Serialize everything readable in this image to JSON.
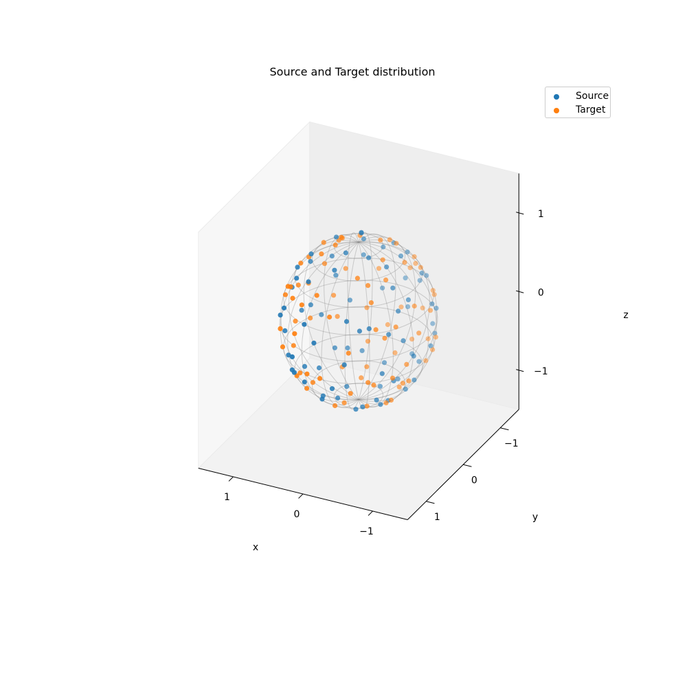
{
  "chart_data": {
    "type": "scatter",
    "projection": "3d",
    "title": "Source and Target distribution",
    "xlabel": "x",
    "ylabel": "y",
    "zlabel": "z",
    "xlim": [
      -1.5,
      1.5
    ],
    "ylim": [
      -1.5,
      1.5
    ],
    "zlim": [
      -1.5,
      1.5
    ],
    "xticks": [
      1,
      0,
      -1
    ],
    "yticks": [
      -1,
      0,
      1
    ],
    "zticks": [
      1,
      0,
      -1
    ],
    "xtick_labels": [
      "1",
      "0",
      "−1"
    ],
    "ytick_labels": [
      "−1",
      "0",
      "1"
    ],
    "ztick_labels": [
      "1",
      "0",
      "−1"
    ],
    "grid": false,
    "legend_position": "top-right",
    "surface": "unit sphere wireframe",
    "series": [
      {
        "name": "Source",
        "color": "#1f77b4",
        "points": [
          [
            0.12,
            0.98,
            0.15
          ],
          [
            -0.45,
            0.82,
            0.35
          ],
          [
            0.66,
            0.55,
            -0.51
          ],
          [
            -0.78,
            0.4,
            0.48
          ],
          [
            0.3,
            -0.7,
            0.65
          ],
          [
            -0.2,
            -0.95,
            -0.22
          ],
          [
            0.85,
            -0.3,
            0.43
          ],
          [
            -0.6,
            -0.5,
            -0.62
          ],
          [
            0.05,
            0.25,
            0.97
          ],
          [
            -0.15,
            -0.3,
            -0.94
          ],
          [
            0.95,
            0.2,
            -0.24
          ],
          [
            -0.92,
            -0.25,
            0.3
          ],
          [
            0.4,
            0.6,
            0.69
          ],
          [
            -0.35,
            0.55,
            -0.76
          ],
          [
            0.55,
            -0.8,
            -0.23
          ],
          [
            -0.7,
            0.68,
            -0.2
          ],
          [
            0.2,
            -0.45,
            0.87
          ],
          [
            -0.5,
            -0.2,
            0.84
          ],
          [
            0.75,
            0.6,
            0.28
          ],
          [
            -0.1,
            0.9,
            -0.42
          ],
          [
            0.62,
            -0.1,
            -0.78
          ],
          [
            -0.85,
            0.1,
            -0.52
          ],
          [
            0.1,
            -0.85,
            0.52
          ],
          [
            -0.3,
            -0.75,
            0.59
          ],
          [
            0.9,
            -0.4,
            -0.18
          ],
          [
            -0.65,
            0.3,
            0.7
          ],
          [
            0.35,
            0.3,
            -0.89
          ],
          [
            -0.25,
            0.2,
            0.95
          ],
          [
            0.5,
            0.85,
            -0.17
          ],
          [
            -0.8,
            -0.55,
            -0.24
          ],
          [
            0.7,
            -0.6,
            0.39
          ],
          [
            -0.4,
            -0.9,
            0.18
          ],
          [
            0.15,
            0.7,
            -0.7
          ],
          [
            -0.55,
            0.75,
            0.37
          ],
          [
            0.82,
            0.35,
            -0.45
          ],
          [
            -0.95,
            0.3,
            -0.1
          ],
          [
            0.25,
            -0.15,
            -0.96
          ],
          [
            -0.45,
            0.05,
            -0.89
          ],
          [
            0.6,
            0.15,
            0.79
          ],
          [
            -0.72,
            -0.35,
            0.6
          ],
          [
            0.45,
            -0.55,
            -0.7
          ],
          [
            -0.05,
            -0.6,
            -0.8
          ],
          [
            0.98,
            -0.05,
            0.19
          ],
          [
            -0.2,
            0.45,
            -0.87
          ],
          [
            0.3,
            0.9,
            0.31
          ],
          [
            -0.6,
            -0.7,
            0.38
          ],
          [
            0.72,
            0.1,
            -0.69
          ],
          [
            -0.88,
            0.45,
            0.15
          ],
          [
            0.18,
            -0.98,
            -0.08
          ],
          [
            -0.35,
            -0.4,
            -0.85
          ],
          [
            0.55,
            0.7,
            -0.45
          ],
          [
            -0.75,
            0.6,
            0.27
          ],
          [
            0.08,
            0.5,
            0.86
          ],
          [
            -0.98,
            -0.1,
            -0.15
          ],
          [
            0.8,
            -0.5,
            -0.33
          ],
          [
            -0.5,
            0.35,
            -0.79
          ],
          [
            0.38,
            -0.85,
            0.36
          ],
          [
            -0.15,
            -0.98,
            0.12
          ],
          [
            0.65,
            0.45,
            0.61
          ],
          [
            -0.62,
            -0.1,
            -0.78
          ],
          [
            0.92,
            0.38,
            0.05
          ],
          [
            -0.28,
            0.85,
            0.45
          ],
          [
            0.48,
            -0.3,
            0.82
          ],
          [
            -0.82,
            0.2,
            0.54
          ],
          [
            0.22,
            0.15,
            -0.96
          ],
          [
            -0.42,
            -0.65,
            -0.63
          ],
          [
            0.7,
            -0.7,
            0.1
          ],
          [
            -0.9,
            -0.4,
            0.17
          ],
          [
            0.12,
            -0.3,
            0.95
          ],
          [
            -0.55,
            0.55,
            -0.63
          ],
          [
            0.85,
            0.05,
            0.52
          ],
          [
            -0.3,
            0.95,
            -0.05
          ],
          [
            0.58,
            -0.45,
            -0.68
          ],
          [
            -0.7,
            -0.68,
            -0.2
          ],
          [
            0.35,
            0.8,
            -0.48
          ],
          [
            -0.12,
            -0.72,
            0.68
          ],
          [
            0.95,
            -0.25,
            -0.19
          ],
          [
            -0.48,
            0.15,
            0.86
          ],
          [
            0.28,
            -0.62,
            -0.73
          ],
          [
            -0.78,
            0.52,
            -0.35
          ]
        ]
      },
      {
        "name": "Target",
        "color": "#ff7f0e",
        "points": [
          [
            0.05,
            0.95,
            -0.3
          ],
          [
            -0.55,
            0.78,
            -0.3
          ],
          [
            0.72,
            0.48,
            0.5
          ],
          [
            -0.82,
            0.35,
            -0.45
          ],
          [
            0.25,
            -0.72,
            -0.65
          ],
          [
            -0.25,
            -0.92,
            0.3
          ],
          [
            0.88,
            -0.35,
            -0.32
          ],
          [
            -0.65,
            -0.45,
            0.61
          ],
          [
            0.1,
            0.2,
            -0.97
          ],
          [
            -0.18,
            -0.25,
            0.95
          ],
          [
            0.97,
            0.15,
            0.19
          ],
          [
            -0.9,
            -0.3,
            -0.31
          ],
          [
            0.45,
            0.55,
            -0.7
          ],
          [
            -0.4,
            0.5,
            0.77
          ],
          [
            0.6,
            -0.78,
            0.17
          ],
          [
            -0.72,
            0.65,
            0.24
          ],
          [
            0.15,
            -0.5,
            -0.85
          ],
          [
            -0.45,
            -0.25,
            -0.86
          ],
          [
            0.78,
            0.58,
            -0.23
          ],
          [
            -0.05,
            0.88,
            0.47
          ],
          [
            0.58,
            -0.15,
            0.8
          ],
          [
            -0.88,
            0.15,
            0.45
          ],
          [
            0.05,
            -0.88,
            -0.47
          ],
          [
            -0.35,
            -0.78,
            -0.52
          ],
          [
            0.92,
            -0.38,
            0.1
          ],
          [
            -0.6,
            0.25,
            -0.76
          ],
          [
            0.4,
            0.25,
            0.88
          ],
          [
            -0.2,
            0.15,
            -0.97
          ],
          [
            0.45,
            0.88,
            0.15
          ],
          [
            -0.82,
            -0.5,
            0.28
          ],
          [
            0.65,
            -0.65,
            -0.39
          ],
          [
            -0.45,
            -0.88,
            -0.15
          ],
          [
            0.2,
            0.75,
            0.63
          ],
          [
            -0.6,
            0.72,
            -0.35
          ],
          [
            0.8,
            0.4,
            0.45
          ],
          [
            -0.97,
            0.2,
            0.15
          ],
          [
            0.3,
            -0.1,
            0.95
          ],
          [
            -0.4,
            0.1,
            0.91
          ],
          [
            0.55,
            0.2,
            -0.81
          ],
          [
            -0.75,
            -0.4,
            -0.53
          ],
          [
            0.5,
            -0.5,
            0.71
          ],
          [
            -0.1,
            -0.65,
            0.75
          ],
          [
            0.96,
            -0.1,
            -0.26
          ],
          [
            -0.25,
            0.5,
            0.83
          ],
          [
            0.25,
            0.92,
            -0.3
          ],
          [
            -0.65,
            -0.65,
            -0.39
          ],
          [
            0.75,
            0.15,
            0.64
          ],
          [
            -0.9,
            0.4,
            -0.17
          ],
          [
            0.22,
            -0.96,
            0.17
          ],
          [
            -0.3,
            -0.45,
            0.84
          ],
          [
            0.6,
            0.65,
            0.46
          ],
          [
            -0.78,
            0.55,
            -0.3
          ],
          [
            0.1,
            0.45,
            -0.89
          ],
          [
            -0.95,
            -0.15,
            0.27
          ],
          [
            0.78,
            -0.55,
            0.3
          ],
          [
            -0.55,
            0.3,
            0.78
          ],
          [
            0.35,
            -0.88,
            -0.32
          ],
          [
            -0.1,
            -0.96,
            -0.25
          ],
          [
            0.62,
            0.5,
            -0.6
          ],
          [
            -0.58,
            -0.15,
            0.8
          ],
          [
            0.9,
            0.42,
            -0.1
          ],
          [
            -0.32,
            0.82,
            -0.47
          ],
          [
            0.42,
            -0.35,
            -0.84
          ],
          [
            -0.85,
            0.25,
            -0.46
          ],
          [
            0.28,
            0.1,
            0.95
          ],
          [
            -0.48,
            -0.6,
            0.64
          ],
          [
            0.72,
            -0.68,
            -0.15
          ],
          [
            -0.92,
            -0.35,
            -0.17
          ],
          [
            0.15,
            -0.35,
            -0.92
          ],
          [
            -0.5,
            0.6,
            0.62
          ],
          [
            0.88,
            0.1,
            -0.46
          ],
          [
            -0.35,
            0.93,
            0.1
          ],
          [
            0.55,
            -0.5,
            0.67
          ],
          [
            -0.72,
            -0.65,
            0.24
          ],
          [
            0.4,
            0.78,
            0.48
          ],
          [
            -0.15,
            -0.7,
            -0.7
          ],
          [
            0.97,
            -0.2,
            0.15
          ],
          [
            -0.5,
            0.2,
            -0.84
          ],
          [
            0.3,
            -0.6,
            0.74
          ],
          [
            -0.8,
            0.5,
            0.33
          ],
          [
            0.68,
            0.3,
            -0.67
          ],
          [
            -0.38,
            -0.82,
            0.43
          ],
          [
            0.82,
            -0.2,
            0.54
          ],
          [
            -0.62,
            0.7,
            0.35
          ]
        ]
      }
    ]
  }
}
